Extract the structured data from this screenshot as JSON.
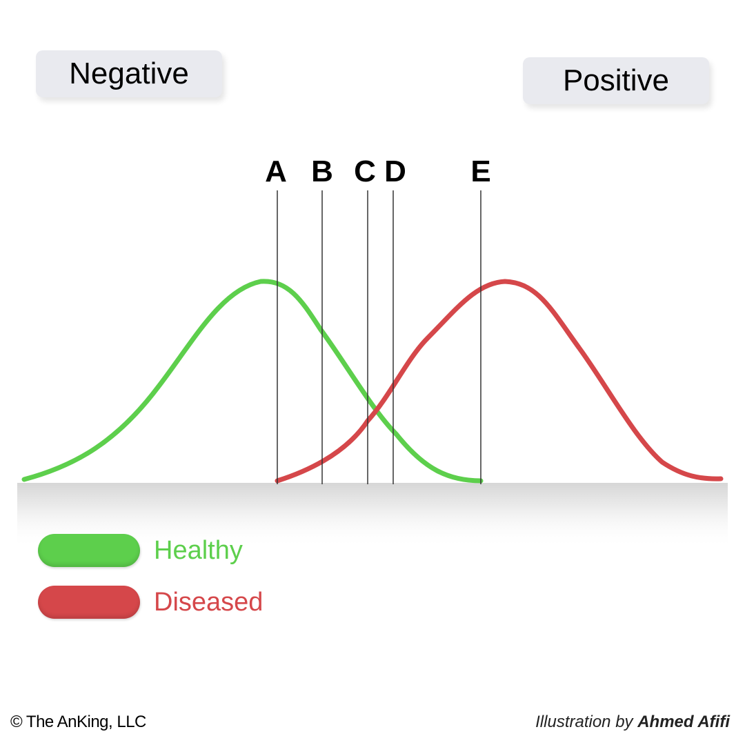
{
  "labels": {
    "negative": "Negative",
    "positive": "Positive"
  },
  "cutoffs": [
    {
      "label": "A"
    },
    {
      "label": "B"
    },
    {
      "label": "C"
    },
    {
      "label": "D"
    },
    {
      "label": "E"
    }
  ],
  "legend": {
    "healthy": {
      "label": "Healthy",
      "color": "#5dcf4c"
    },
    "diseased": {
      "label": "Diseased",
      "color": "#d5474a"
    }
  },
  "footer": {
    "copyright": "© The AnKing, LLC",
    "credit_prefix": "Illustration by",
    "credit_author": "Ahmed Afifi"
  }
}
